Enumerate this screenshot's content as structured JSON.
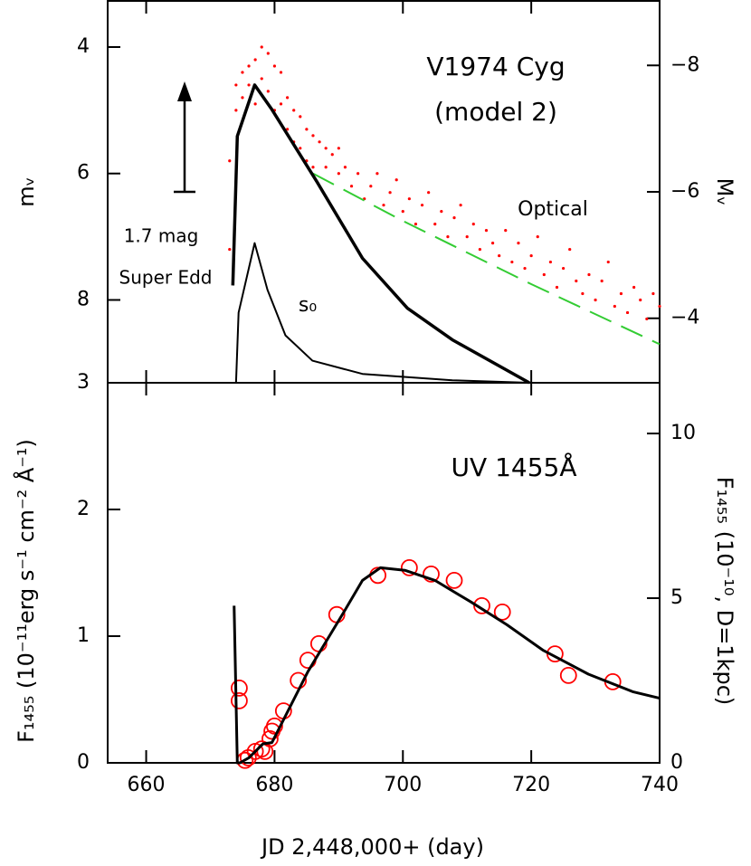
{
  "chart_data": [
    {
      "type": "line",
      "ylabel": "mᵥ",
      "y2label": "Mᵥ",
      "annotations": [
        "V1974 Cyg",
        "(model 2)",
        "Optical",
        "1.7 mag",
        "Super Edd",
        "s₀"
      ],
      "xlim": [
        654,
        740
      ],
      "xticks": [
        660,
        680,
        700,
        720,
        740
      ],
      "ylim": [
        9.31,
        3.27
      ],
      "yticks": [
        4,
        6,
        8
      ],
      "y2lim": [
        -2.98,
        -9.02
      ],
      "y2ticks": [
        {
          "value": -8,
          "label": "−8"
        },
        {
          "value": -6,
          "label": "−6"
        },
        {
          "value": -4,
          "label": "−4"
        }
      ],
      "series": [
        {
          "name": "Optical",
          "style": "dots",
          "color": "#ff0000",
          "x": [
            673,
            673,
            674,
            674,
            675,
            675,
            676,
            676,
            677,
            677,
            678,
            678,
            679,
            679,
            680,
            680,
            681,
            681,
            682,
            682,
            683,
            683,
            684,
            684,
            685,
            685,
            686,
            686,
            687,
            688,
            688,
            689,
            690,
            690,
            691,
            692,
            693,
            694,
            695,
            696,
            697,
            698,
            699,
            700,
            701,
            702,
            703,
            704,
            705,
            706,
            707,
            708,
            709,
            710,
            711,
            712,
            713,
            714,
            715,
            716,
            717,
            718,
            719,
            720,
            721,
            722,
            723,
            724,
            725,
            726,
            727,
            728,
            729,
            730,
            731,
            732,
            733,
            734,
            735,
            736,
            737,
            738,
            739,
            740
          ],
          "values": [
            7.2,
            5.8,
            5.0,
            4.6,
            4.4,
            4.8,
            4.3,
            4.6,
            4.2,
            4.9,
            4.0,
            4.5,
            4.1,
            4.7,
            4.3,
            5.0,
            4.4,
            4.9,
            4.8,
            5.3,
            5.0,
            5.5,
            5.1,
            5.6,
            5.3,
            5.8,
            5.4,
            5.9,
            5.5,
            5.9,
            5.6,
            5.7,
            6.0,
            5.6,
            5.9,
            6.2,
            6.0,
            6.4,
            6.2,
            6.0,
            6.5,
            6.3,
            6.1,
            6.6,
            6.4,
            6.8,
            6.5,
            6.3,
            6.8,
            6.6,
            7.0,
            6.7,
            6.5,
            7.0,
            6.8,
            7.2,
            6.9,
            7.1,
            7.3,
            6.9,
            7.4,
            7.1,
            7.5,
            7.3,
            7.0,
            7.6,
            7.4,
            7.8,
            7.5,
            7.2,
            7.7,
            7.9,
            7.6,
            8.0,
            7.7,
            7.4,
            8.1,
            7.9,
            8.2,
            7.8,
            8.0,
            8.3,
            7.9,
            8.1
          ]
        },
        {
          "style": "dashed",
          "color": "#33cc33",
          "linewidth": 2,
          "x": [
            686,
            700,
            720,
            740
          ],
          "values": [
            6.0,
            6.75,
            7.75,
            8.7
          ]
        },
        {
          "style": "line",
          "color": "#000000",
          "linewidth": 3.5,
          "x": [
            673.5,
            674.2,
            676.9,
            679.6,
            686.6,
            693.7,
            700.7,
            707.7,
            719.7
          ],
          "values": [
            7.77,
            5.41,
            4.6,
            4.99,
            6.13,
            7.34,
            8.13,
            8.63,
            9.31
          ]
        },
        {
          "name": "s₀",
          "style": "line",
          "color": "#000000",
          "linewidth": 2,
          "x": [
            674.0,
            674.4,
            676.9,
            678.9,
            681.7,
            685.9,
            693.7,
            707.7,
            719.7
          ],
          "values": [
            9.31,
            8.2,
            7.1,
            7.84,
            8.56,
            8.96,
            9.17,
            9.27,
            9.31
          ]
        }
      ]
    },
    {
      "type": "line",
      "xlabel": "JD 2,448,000+ (day)",
      "ylabel": "F₁₄₅₅ (10⁻¹¹erg s⁻¹ cm⁻² Å⁻¹)",
      "y2label": "F₁₄₅₅ (10⁻¹⁰, D=1kpc)",
      "annotations": [
        "UV 1455Å"
      ],
      "xlim": [
        654,
        740
      ],
      "xticks": [
        660,
        680,
        700,
        720,
        740
      ],
      "ylim": [
        0,
        3
      ],
      "yticks": [
        0,
        1,
        2,
        3
      ],
      "y2lim": [
        0,
        11.54
      ],
      "y2ticks": [
        0,
        5,
        10
      ],
      "series": [
        {
          "style": "circles",
          "color": "#ff0000",
          "x": [
            674.5,
            674.5,
            675.4,
            675.9,
            677.0,
            678.0,
            678.5,
            679.3,
            679.6,
            680.0,
            681.4,
            683.7,
            685.2,
            686.9,
            689.7,
            696.1,
            701.0,
            704.4,
            708.0,
            712.3,
            715.5,
            723.7,
            725.8,
            732.7
          ],
          "values": [
            0.59,
            0.49,
            0.02,
            0.04,
            0.09,
            0.11,
            0.09,
            0.19,
            0.25,
            0.29,
            0.41,
            0.65,
            0.81,
            0.94,
            1.17,
            1.48,
            1.54,
            1.49,
            1.44,
            1.24,
            1.19,
            0.86,
            0.69,
            0.64
          ]
        },
        {
          "style": "line",
          "color": "#000000",
          "linewidth": 3,
          "x": [
            673.7,
            674.2,
            674.6,
            676.0,
            678.2,
            679.6,
            685.2,
            690.8,
            693.7,
            696.5,
            700.3,
            705.0,
            710.6,
            716.2,
            721.8,
            728.9,
            735.9,
            740.0
          ],
          "values": [
            1.24,
            0,
            0,
            0.04,
            0.15,
            0.16,
            0.72,
            1.19,
            1.44,
            1.54,
            1.52,
            1.44,
            1.27,
            1.09,
            0.89,
            0.7,
            0.56,
            0.51
          ]
        }
      ]
    }
  ]
}
